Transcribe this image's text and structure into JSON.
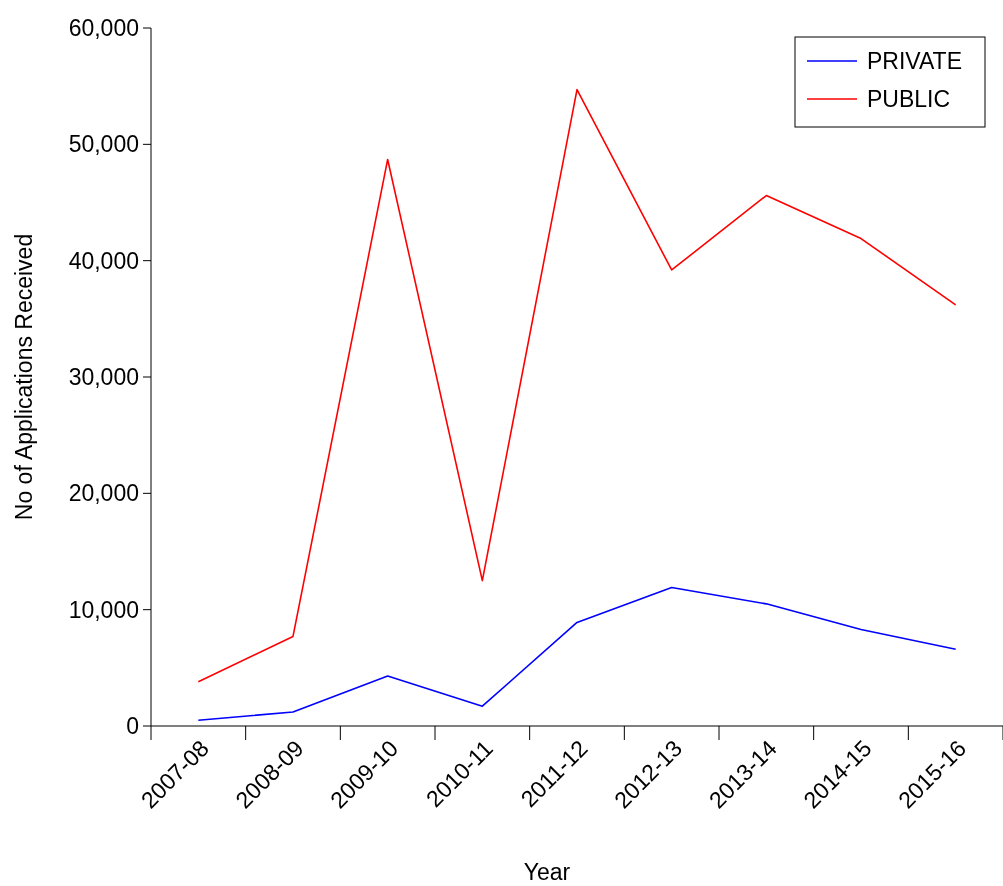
{
  "chart_data": {
    "type": "line",
    "xlabel": "Year",
    "ylabel": "No of Applications Received",
    "categories": [
      "2007-08",
      "2008-09",
      "2009-10",
      "2010-11",
      "2011-12",
      "2012-13",
      "2013-14",
      "2014-15",
      "2015-16"
    ],
    "series": [
      {
        "name": "PRIVATE",
        "color": "#0000ff",
        "values": [
          500,
          1200,
          4300,
          1700,
          8900,
          11900,
          10500,
          8300,
          6600
        ]
      },
      {
        "name": "PUBLIC",
        "color": "#ff0000",
        "values": [
          3800,
          7700,
          48700,
          12500,
          54700,
          39200,
          45600,
          41900,
          36200
        ]
      }
    ],
    "ylim": [
      0,
      60000
    ],
    "yticks": [
      {
        "value": 0,
        "label": "0"
      },
      {
        "value": 10000,
        "label": "10,000"
      },
      {
        "value": 20000,
        "label": "20,000"
      },
      {
        "value": 30000,
        "label": "30,000"
      },
      {
        "value": 40000,
        "label": "40,000"
      },
      {
        "value": 50000,
        "label": "50,000"
      },
      {
        "value": 60000,
        "label": "60,000"
      }
    ],
    "grid": false,
    "legend": "top right",
    "marker": "none",
    "line_style": "solid"
  }
}
